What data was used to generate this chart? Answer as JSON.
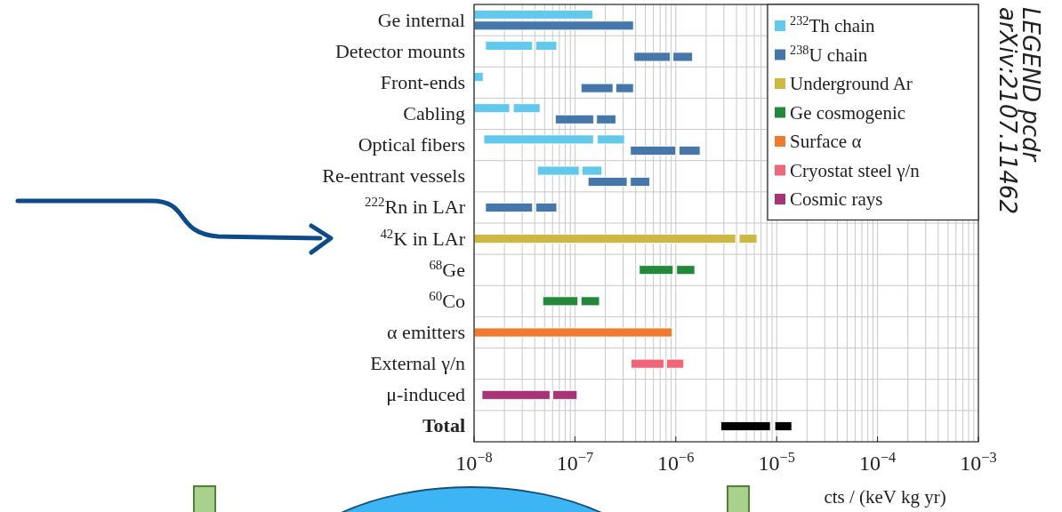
{
  "chart_data": {
    "type": "bar",
    "orientation": "horizontal",
    "log": "x",
    "grid": true,
    "legend": "top right",
    "categories": [
      "Ge internal",
      "Detector mounts",
      "Front-ends",
      "Cabling",
      "Optical fibers",
      "Re-entrant vessels",
      "$^{222}$Rn in LAr",
      "$^{42}$K in LAr",
      "$^{68}$Ge",
      "$^{60}$Co",
      "α emitters",
      "External γ/n",
      "μ-induced",
      "Total"
    ],
    "xlabel": "cts / (keV kg yr)",
    "xlim": [
      1e-08,
      0.001
    ],
    "xticks": [
      {
        "value": 1e-08,
        "label": "10$^{−8}$"
      },
      {
        "value": 1e-07,
        "label": "10$^{−7}$"
      },
      {
        "value": 1e-06,
        "label": "10$^{−6}$"
      },
      {
        "value": 1e-05,
        "label": "10$^{−5}$"
      },
      {
        "value": 0.0001,
        "label": "10$^{−4}$"
      },
      {
        "value": 0.001,
        "label": "10$^{−3}$"
      }
    ],
    "annotations": [
      "LEGEND pcdr",
      "arXiv:2107.11462"
    ],
    "series": [
      {
        "name": "$^{232}$Th chain",
        "color": "#63c9ec",
        "base": [
          1e-08,
          1.3e-08,
          1e-08,
          1e-08,
          1.25e-08,
          4.25e-08,
          null,
          null,
          null,
          null,
          null,
          null,
          null,
          null
        ],
        "values": [
          1.4e-07,
          2.5e-08,
          2.3e-09,
          1.25e-08,
          1.4e-07,
          6.75e-08,
          null,
          null,
          null,
          null,
          null,
          null,
          null,
          null
        ]
      },
      {
        "color": "#63c9ec",
        "base": [
          null,
          4.1e-08,
          null,
          2.45e-08,
          1.67e-07,
          1.18e-07,
          null,
          null,
          null,
          null,
          null,
          null,
          null,
          null
        ],
        "values": [
          null,
          2.5e-08,
          null,
          2.05e-08,
          1.43e-07,
          6.7e-08,
          null,
          null,
          null,
          null,
          null,
          null,
          null,
          null
        ]
      },
      {
        "name": "$^{238}$U chain",
        "color": "#4677ab",
        "base": [
          1e-08,
          3.85e-07,
          1.15e-07,
          6.4e-08,
          3.55e-07,
          1.35e-07,
          1.3e-08,
          null,
          null,
          null,
          null,
          null,
          null,
          null
        ],
        "values": [
          3.7e-07,
          4.95e-07,
          1.23e-07,
          8.9e-08,
          6.45e-07,
          1.94e-07,
          2.5e-08,
          null,
          null,
          null,
          null,
          null,
          null,
          null
        ]
      },
      {
        "color": "#4677ab",
        "base": [
          null,
          9.4e-07,
          2.55e-07,
          1.64e-07,
          1.08e-06,
          3.55e-07,
          4.1e-08,
          null,
          null,
          null,
          null,
          null,
          null,
          null
        ],
        "values": [
          null,
          5.2e-07,
          1.25e-07,
          9e-08,
          6.6e-07,
          1.95e-07,
          2.5e-08,
          null,
          null,
          null,
          null,
          null,
          null,
          null
        ]
      },
      {
        "name": "Underground Ar",
        "color": "#cbb943",
        "base": [
          null,
          null,
          null,
          null,
          null,
          null,
          null,
          1e-08,
          null,
          null,
          null,
          null,
          null,
          null
        ],
        "values": [
          null,
          null,
          null,
          null,
          null,
          null,
          null,
          3.91e-06,
          null,
          null,
          null,
          null,
          null,
          null
        ]
      },
      {
        "color": "#cbb943",
        "base": [
          null,
          null,
          null,
          null,
          null,
          null,
          null,
          4.25e-06,
          null,
          null,
          null,
          null,
          null,
          null
        ],
        "values": [
          null,
          null,
          null,
          null,
          null,
          null,
          null,
          2.12e-06,
          null,
          null,
          null,
          null,
          null,
          null
        ]
      },
      {
        "name": "Ge cosmogenic",
        "color": "#23883a",
        "base": [
          null,
          null,
          null,
          null,
          null,
          null,
          null,
          null,
          4.35e-07,
          4.8e-08,
          null,
          null,
          null,
          null
        ],
        "values": [
          null,
          null,
          null,
          null,
          null,
          null,
          null,
          null,
          5.05e-07,
          5.9e-08,
          null,
          null,
          null,
          null
        ]
      },
      {
        "color": "#23883a",
        "base": [
          null,
          null,
          null,
          null,
          null,
          null,
          null,
          null,
          1.02e-06,
          1.15e-07,
          null,
          null,
          null,
          null
        ],
        "values": [
          null,
          null,
          null,
          null,
          null,
          null,
          null,
          null,
          5.2e-07,
          6e-08,
          null,
          null,
          null,
          null
        ]
      },
      {
        "name": "Surface α",
        "color": "#ef7b33",
        "base": [
          null,
          null,
          null,
          null,
          null,
          null,
          null,
          null,
          null,
          null,
          1e-08,
          null,
          null,
          null
        ],
        "values": [
          null,
          null,
          null,
          null,
          null,
          null,
          null,
          null,
          null,
          null,
          9.1e-07,
          null,
          null,
          null
        ]
      },
      {
        "name": "Cryostat steel γ/n",
        "color": "#ef6678",
        "base": [
          null,
          null,
          null,
          null,
          null,
          null,
          null,
          null,
          null,
          null,
          null,
          3.6e-07,
          null,
          null
        ],
        "values": [
          null,
          null,
          null,
          null,
          null,
          null,
          null,
          null,
          null,
          null,
          null,
          4e-07,
          null,
          null
        ]
      },
      {
        "color": "#ef6678",
        "base": [
          null,
          null,
          null,
          null,
          null,
          null,
          null,
          null,
          null,
          null,
          null,
          8.1e-07,
          null,
          null
        ],
        "values": [
          null,
          null,
          null,
          null,
          null,
          null,
          null,
          null,
          null,
          null,
          null,
          3.9e-07,
          null,
          null
        ]
      },
      {
        "name": "Cosmic rays",
        "color": "#a83478",
        "base": [
          null,
          null,
          null,
          null,
          null,
          null,
          null,
          null,
          null,
          null,
          null,
          null,
          1.2e-08,
          null
        ],
        "values": [
          null,
          null,
          null,
          null,
          null,
          null,
          null,
          null,
          null,
          null,
          null,
          null,
          4.45e-08,
          null
        ]
      },
      {
        "color": "#a83478",
        "base": [
          null,
          null,
          null,
          null,
          null,
          null,
          null,
          null,
          null,
          null,
          null,
          null,
          6.05e-08,
          null
        ],
        "values": [
          null,
          null,
          null,
          null,
          null,
          null,
          null,
          null,
          null,
          null,
          null,
          null,
          4.45e-08,
          null
        ]
      },
      {
        "color": "#000000",
        "base": [
          null,
          null,
          null,
          null,
          null,
          null,
          null,
          null,
          null,
          null,
          null,
          null,
          null,
          2.8e-06
        ],
        "values": [
          null,
          null,
          null,
          null,
          null,
          null,
          null,
          null,
          null,
          null,
          null,
          null,
          null,
          5.85e-06
        ]
      },
      {
        "color": "#000000",
        "base": [
          null,
          null,
          null,
          null,
          null,
          null,
          null,
          null,
          null,
          null,
          null,
          null,
          null,
          9.6e-06
        ],
        "values": [
          null,
          null,
          null,
          null,
          null,
          null,
          null,
          null,
          null,
          null,
          null,
          null,
          null,
          4.5e-06
        ]
      }
    ]
  }
}
